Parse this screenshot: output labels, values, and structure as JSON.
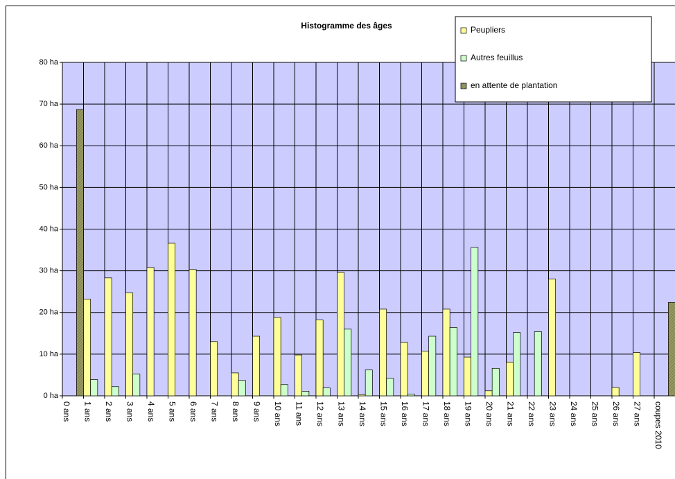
{
  "chart_data": {
    "type": "bar",
    "title": "Histogramme des âges",
    "categories": [
      "0 ans",
      "1 ans",
      "2 ans",
      "3 ans",
      "4 ans",
      "5 ans",
      "6 ans",
      "7 ans",
      "8 ans",
      "9 ans",
      "10 ans",
      "11 ans",
      "12 ans",
      "13 ans",
      "14 ans",
      "15 ans",
      "16 ans",
      "17 ans",
      "18 ans",
      "19 ans",
      "20 ans",
      "21 ans",
      "22 ans",
      "23 ans",
      "24 ans",
      "25 ans",
      "26 ans",
      "27 ans",
      "coupes 2010"
    ],
    "series": [
      {
        "name": "Peupliers",
        "color": "#ffff99",
        "values": [
          0,
          23.2,
          28.3,
          24.7,
          30.8,
          36.6,
          30.3,
          13,
          5.5,
          14.3,
          18.8,
          9.8,
          18.2,
          29.6,
          0.3,
          20.8,
          12.8,
          10.7,
          20.8,
          9.3,
          1.2,
          8.1,
          0,
          28,
          0,
          0,
          2,
          10.4,
          0
        ]
      },
      {
        "name": "Autres feuillus",
        "color": "#ccffcc",
        "values": [
          0,
          3.9,
          2.2,
          5.2,
          0,
          0,
          0,
          0,
          3.7,
          0,
          2.7,
          1.1,
          1.9,
          16,
          6.2,
          4.2,
          0.4,
          14.3,
          16.4,
          35.6,
          6.6,
          15.2,
          15.4,
          0,
          0,
          0,
          0,
          0,
          0
        ]
      },
      {
        "name": "en attente de plantation",
        "color": "#999966",
        "values": [
          68.7,
          0,
          0,
          0,
          0,
          0,
          0,
          0,
          0,
          0,
          0,
          0,
          0,
          0,
          0,
          0,
          0,
          0,
          0,
          0,
          0,
          0,
          0,
          0,
          0,
          0,
          0,
          0,
          22.4
        ]
      }
    ],
    "ylim": [
      0,
      80
    ],
    "yticks": [
      {
        "value": 0,
        "label": "0 ha"
      },
      {
        "value": 10,
        "label": "10 ha"
      },
      {
        "value": 20,
        "label": "20 ha"
      },
      {
        "value": 30,
        "label": "30 ha"
      },
      {
        "value": 40,
        "label": "40 ha"
      },
      {
        "value": 50,
        "label": "50 ha"
      },
      {
        "value": 60,
        "label": "60 ha"
      },
      {
        "value": 70,
        "label": "70 ha"
      },
      {
        "value": 80,
        "label": "80 ha"
      }
    ],
    "grid": true,
    "legend": "top-right",
    "background": "#ccccff"
  }
}
